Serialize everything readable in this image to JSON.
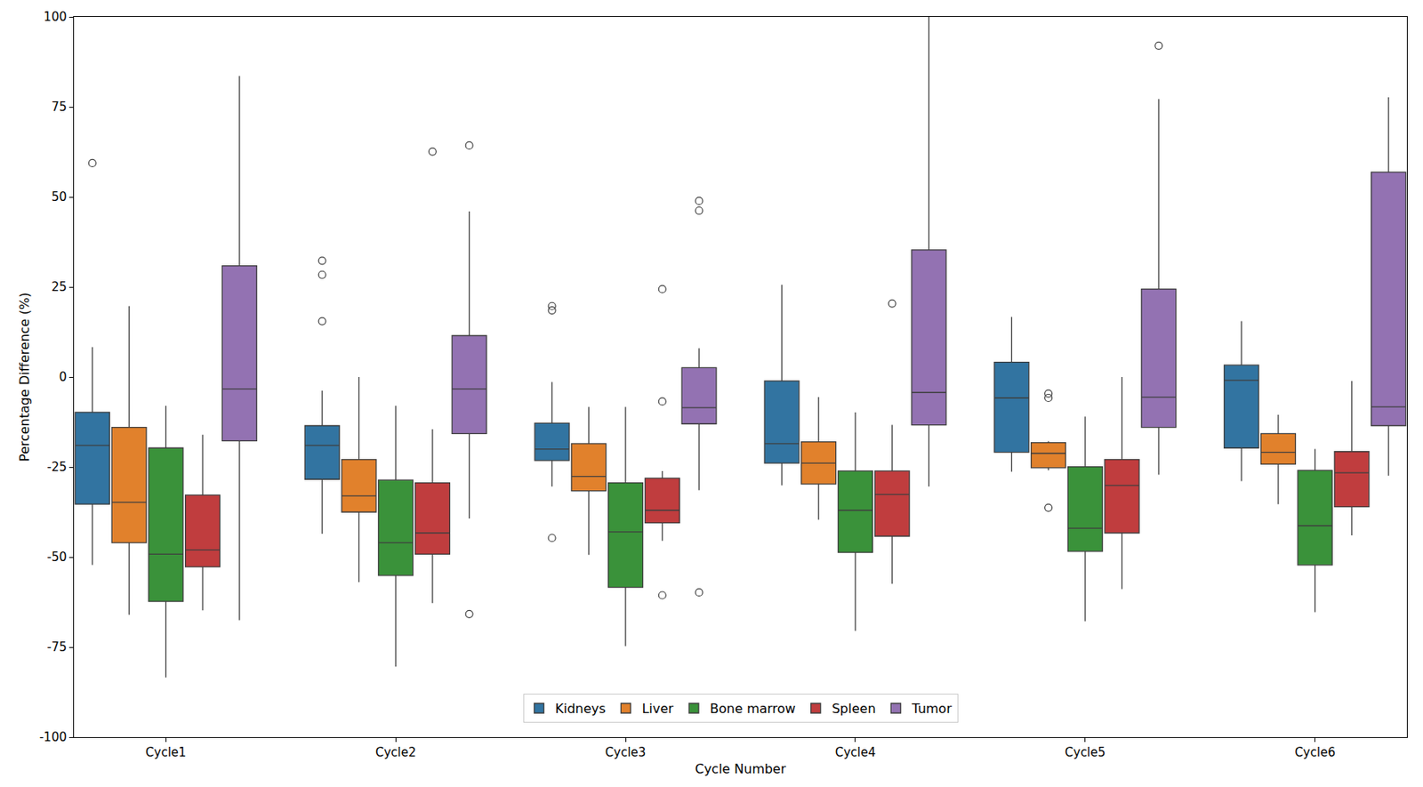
{
  "chart_data": {
    "type": "box",
    "x_label": "Cycle Number",
    "y_label": "Percentage Difference (%)",
    "categories": [
      "Cycle1",
      "Cycle2",
      "Cycle3",
      "Cycle4",
      "Cycle5",
      "Cycle6"
    ],
    "ylim": [
      -100,
      100
    ],
    "yticks": [
      -100,
      -75,
      -50,
      -25,
      0,
      25,
      50,
      75,
      100
    ],
    "grid": false,
    "legend": "lower center",
    "series": [
      {
        "name": "Kidneys",
        "color": "#3274a1",
        "whisker_high": [
          8.3,
          -3.8,
          -1.4,
          25.6,
          16.7,
          15.5
        ],
        "q3": [
          -9.8,
          -13.5,
          -12.8,
          -1.1,
          4.1,
          3.3
        ],
        "median": [
          -19,
          -19,
          -20,
          -18.5,
          -5.8,
          -0.9
        ],
        "q1": [
          -35.3,
          -28.4,
          -23.2,
          -23.9,
          -20.9,
          -19.7
        ],
        "whisker_low": [
          -52.2,
          -43.5,
          -30.4,
          -30.1,
          -26.3,
          -28.9
        ],
        "outliers": [
          [
            59.4
          ],
          [
            32.3,
            28.4,
            15.5
          ],
          [
            19.7,
            18.5,
            -44.7
          ],
          [],
          [],
          []
        ]
      },
      {
        "name": "Liver",
        "color": "#e1812c",
        "whisker_high": [
          19.7,
          0,
          -8.3,
          -5.6,
          -17.8,
          -10.5
        ],
        "q3": [
          -14,
          -22.9,
          -18.5,
          -18,
          -18.2,
          -15.7
        ],
        "median": [
          -34.8,
          -33,
          -27.6,
          -23.9,
          -21.2,
          -20.9
        ],
        "q1": [
          -46,
          -37.5,
          -31.6,
          -29.7,
          -25.2,
          -24.2
        ],
        "whisker_low": [
          -66,
          -57,
          -49.4,
          -39.6,
          -25.9,
          -35.3
        ],
        "outliers": [
          [],
          [],
          [],
          [],
          [
            -4.6,
            -5.8,
            -36.3
          ],
          []
        ]
      },
      {
        "name": "Bone marrow",
        "color": "#3a923a",
        "whisker_high": [
          -8,
          -8,
          -8.3,
          -9.8,
          -11,
          -20
        ],
        "q3": [
          -19.7,
          -28.6,
          -29.4,
          -26.1,
          -24.9,
          -25.9
        ],
        "median": [
          -49.2,
          -46,
          -43,
          -37,
          -42,
          -41.3
        ],
        "q1": [
          -62.3,
          -55.1,
          -58.4,
          -48.7,
          -48.4,
          -52.2
        ],
        "whisker_low": [
          -83.4,
          -80.4,
          -74.7,
          -70.5,
          -67.8,
          -65.3
        ],
        "outliers": [
          [],
          [],
          [],
          [],
          [],
          []
        ]
      },
      {
        "name": "Spleen",
        "color": "#c03d3e",
        "whisker_high": [
          -16,
          -14.5,
          -26.1,
          -13.3,
          0,
          -1.1
        ],
        "q3": [
          -32.8,
          -29.4,
          -28.1,
          -26.1,
          -22.9,
          -20.7
        ],
        "median": [
          -48,
          -43.3,
          -37,
          -32.6,
          -30.1,
          -26.6
        ],
        "q1": [
          -52.7,
          -49.2,
          -40.5,
          -44.2,
          -43.3,
          -36
        ],
        "whisker_low": [
          -64.8,
          -62.8,
          -45.5,
          -57.4,
          -58.9,
          -44
        ],
        "outliers": [
          [],
          [
            62.6
          ],
          [
            24.4,
            -6.8,
            -60.6
          ],
          [
            20.4
          ],
          [],
          []
        ]
      },
      {
        "name": "Tumor",
        "color": "#9372b2",
        "whisker_high": [
          83.6,
          46,
          8,
          100,
          77.2,
          77.7
        ],
        "q3": [
          30.9,
          11.5,
          2.6,
          35.3,
          24.4,
          56.9
        ],
        "median": [
          -3.3,
          -3.3,
          -8.5,
          -4.3,
          -5.6,
          -8.3
        ],
        "q1": [
          -17.7,
          -15.7,
          -13,
          -13.3,
          -14,
          -13.5
        ],
        "whisker_low": [
          -67.5,
          -39.3,
          -31.4,
          -30.4,
          -27.1,
          -27.4
        ],
        "outliers": [
          [],
          [
            64.3,
            -65.8
          ],
          [
            48.9,
            46.2,
            -59.8
          ],
          [],
          [
            92
          ],
          []
        ]
      }
    ]
  }
}
